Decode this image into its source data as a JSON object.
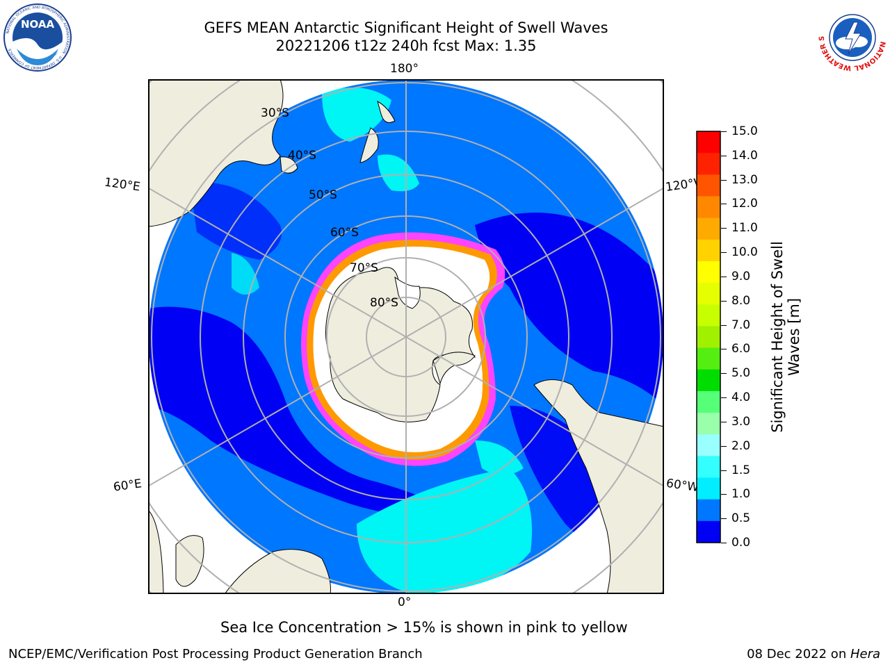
{
  "title": {
    "line1": "GEFS MEAN Antarctic Significant Height of Swell Waves",
    "line2": "20221206 t12z 240h fcst   Max: 1.35"
  },
  "map": {
    "projection": "south-polar-stereographic",
    "longitude_labels": {
      "top": "180°",
      "bottom": "0°",
      "upper_left": "120°E",
      "upper_right": "120°W",
      "lower_left": "60°E",
      "lower_right": "60°W"
    },
    "latitude_labels": [
      "30°S",
      "40°S",
      "50°S",
      "60°S",
      "70°S",
      "80°S"
    ],
    "colors": {
      "land": "#efedde",
      "antarctica": "#efedde",
      "swell_0_0_5": "#0000f5",
      "swell_0_5_1_0": "#0077ff",
      "swell_1_0_1_5": "#00f5f5",
      "sea_ice_low": "#ff44ff",
      "sea_ice_mid": "#ff9900",
      "sea_ice_high": "#ffff00",
      "ice_shelf": "#ffffff",
      "graticule": "#b0b0b0"
    }
  },
  "colorbar": {
    "label_line1": "Significant Height of Swell",
    "label_line2": "Waves [m]",
    "ticks": [
      "15.0",
      "14.0",
      "13.0",
      "12.0",
      "11.0",
      "10.0",
      "9.0",
      "8.0",
      "7.0",
      "6.0",
      "5.0",
      "4.0",
      "3.0",
      "2.0",
      "1.5",
      "1.0",
      "0.5",
      "0.0"
    ],
    "colors_top_to_bottom": [
      "#ff0000",
      "#ff2200",
      "#ff5500",
      "#ff8800",
      "#ffaa00",
      "#ffd200",
      "#ffff00",
      "#e6ff00",
      "#c8ff00",
      "#a0f000",
      "#55ee11",
      "#00dd00",
      "#55ff77",
      "#99ffaa",
      "#99ffff",
      "#33ffff",
      "#00eeff",
      "#0077ff",
      "#0000f5"
    ]
  },
  "caption": "Sea Ice Concentration > 15% is shown in pink to yellow",
  "footer": {
    "left": "NCEP/EMC/Verification Post Processing Product Generation Branch",
    "right_date": "08 Dec 2022 on ",
    "right_host": "Hera"
  },
  "logos": {
    "noaa_text": "NOAA",
    "noaa_ring_text": "NATIONAL OCEANIC AND ATMOSPHERIC ADMINISTRATION · U.S. DEPARTMENT OF COMMERCE",
    "nws_ring_text": "NATIONAL WEATHER SERVICE"
  }
}
